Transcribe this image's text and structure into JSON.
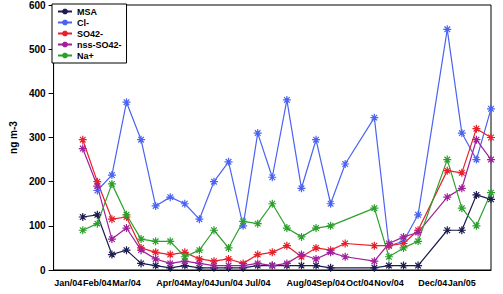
{
  "chart_data": {
    "type": "line",
    "y_label": "ng m-3",
    "categories": [
      null,
      "Jan/04",
      null,
      "Feb/04",
      null,
      "Mar/04",
      null,
      null,
      "Apr/04",
      null,
      "May/04",
      null,
      "Jun/04",
      null,
      "Jul/04",
      null,
      null,
      "Aug/04",
      null,
      "Sep/04",
      null,
      "Oct/04",
      null,
      "Nov/04",
      null,
      null,
      "Dec/04",
      null,
      "Jan/05",
      null,
      null
    ],
    "series": [
      {
        "name": "MSA",
        "color": "#1c1c50",
        "marker": "asterisk",
        "values": [
          null,
          null,
          120,
          125,
          35,
          45,
          15,
          10,
          5,
          10,
          5,
          5,
          5,
          5,
          10,
          10,
          10,
          10,
          10,
          5,
          null,
          null,
          5,
          10,
          10,
          10,
          null,
          90,
          90,
          170,
          160
        ]
      },
      {
        "name": "Cl-",
        "color": "#4a63f2",
        "marker": "asterisk",
        "values": [
          null,
          null,
          null,
          180,
          215,
          380,
          295,
          145,
          165,
          150,
          115,
          200,
          245,
          100,
          310,
          210,
          385,
          185,
          295,
          150,
          240,
          null,
          345,
          55,
          65,
          125,
          null,
          545,
          310,
          250,
          365
        ]
      },
      {
        "name": "SO42-",
        "color": "#e8202a",
        "marker": "asterisk",
        "values": [
          null,
          null,
          295,
          200,
          115,
          120,
          50,
          40,
          35,
          40,
          25,
          20,
          25,
          15,
          35,
          40,
          55,
          30,
          50,
          45,
          60,
          null,
          55,
          55,
          60,
          90,
          null,
          225,
          220,
          320,
          300
        ]
      },
      {
        "name": "nss-SO42-",
        "color": "#a0209c",
        "marker": "asterisk",
        "values": [
          null,
          null,
          275,
          190,
          70,
          95,
          45,
          25,
          15,
          20,
          15,
          10,
          10,
          10,
          15,
          10,
          15,
          35,
          25,
          40,
          30,
          null,
          20,
          60,
          75,
          85,
          null,
          165,
          185,
          295,
          250
        ]
      },
      {
        "name": "Na+",
        "color": "#2ca02c",
        "marker": "asterisk",
        "values": [
          null,
          null,
          90,
          105,
          195,
          125,
          70,
          65,
          65,
          30,
          45,
          90,
          50,
          110,
          105,
          150,
          95,
          75,
          95,
          100,
          null,
          null,
          140,
          30,
          50,
          65,
          null,
          250,
          140,
          100,
          175
        ]
      }
    ],
    "ylim": [
      0,
      600
    ],
    "yticks": [
      0,
      100,
      200,
      300,
      400,
      500,
      600
    ],
    "grid": false,
    "legend": "upper left"
  }
}
